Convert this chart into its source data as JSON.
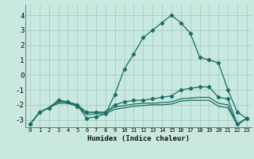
{
  "title": "",
  "xlabel": "Humidex (Indice chaleur)",
  "xlim": [
    -0.5,
    23.5
  ],
  "ylim": [
    -3.5,
    4.7
  ],
  "yticks": [
    -3,
    -2,
    -1,
    0,
    1,
    2,
    3,
    4
  ],
  "xticks": [
    0,
    1,
    2,
    3,
    4,
    5,
    6,
    7,
    8,
    9,
    10,
    11,
    12,
    13,
    14,
    15,
    16,
    17,
    18,
    19,
    20,
    21,
    22,
    23
  ],
  "bg_color": "#c8e8e0",
  "grid_color": "#a0c8c0",
  "line_color": "#1a6e64",
  "curve1_x": [
    0,
    1,
    2,
    3,
    4,
    5,
    6,
    7,
    8,
    9,
    10,
    11,
    12,
    13,
    14,
    15,
    16,
    17,
    18,
    19,
    20,
    21,
    22,
    23
  ],
  "curve1_y": [
    -3.3,
    -2.5,
    -2.2,
    -1.7,
    -1.8,
    -2.0,
    -2.9,
    -2.8,
    -2.6,
    -1.3,
    0.4,
    1.4,
    2.5,
    3.0,
    3.5,
    4.0,
    3.5,
    2.8,
    1.2,
    1.0,
    0.8,
    -1.0,
    -2.5,
    -2.9
  ],
  "curve2_x": [
    0,
    1,
    2,
    3,
    4,
    5,
    6,
    7,
    8,
    9,
    10,
    11,
    12,
    13,
    14,
    15,
    16,
    17,
    18,
    19,
    20,
    21,
    22,
    23
  ],
  "curve2_y": [
    -3.3,
    -2.5,
    -2.2,
    -1.7,
    -1.8,
    -2.1,
    -2.5,
    -2.5,
    -2.5,
    -2.0,
    -1.8,
    -1.7,
    -1.7,
    -1.6,
    -1.5,
    -1.4,
    -1.0,
    -0.9,
    -0.8,
    -0.8,
    -1.5,
    -1.6,
    -3.3,
    -2.9
  ],
  "curve3_x": [
    0,
    1,
    2,
    3,
    4,
    5,
    6,
    7,
    8,
    9,
    10,
    11,
    12,
    13,
    14,
    15,
    16,
    17,
    18,
    19,
    20,
    21,
    22,
    23
  ],
  "curve3_y": [
    -3.3,
    -2.5,
    -2.2,
    -1.8,
    -1.8,
    -2.0,
    -2.5,
    -2.5,
    -2.5,
    -2.15,
    -2.05,
    -1.95,
    -1.9,
    -1.9,
    -1.85,
    -1.8,
    -1.6,
    -1.55,
    -1.5,
    -1.5,
    -1.9,
    -2.0,
    -3.3,
    -2.9
  ],
  "curve4_x": [
    0,
    1,
    2,
    3,
    4,
    5,
    6,
    7,
    8,
    9,
    10,
    11,
    12,
    13,
    14,
    15,
    16,
    17,
    18,
    19,
    20,
    21,
    22,
    23
  ],
  "curve4_y": [
    -3.3,
    -2.5,
    -2.2,
    -1.9,
    -1.9,
    -2.1,
    -2.65,
    -2.6,
    -2.6,
    -2.3,
    -2.2,
    -2.1,
    -2.05,
    -2.0,
    -2.0,
    -1.95,
    -1.75,
    -1.7,
    -1.7,
    -1.7,
    -2.1,
    -2.2,
    -3.35,
    -2.9
  ]
}
